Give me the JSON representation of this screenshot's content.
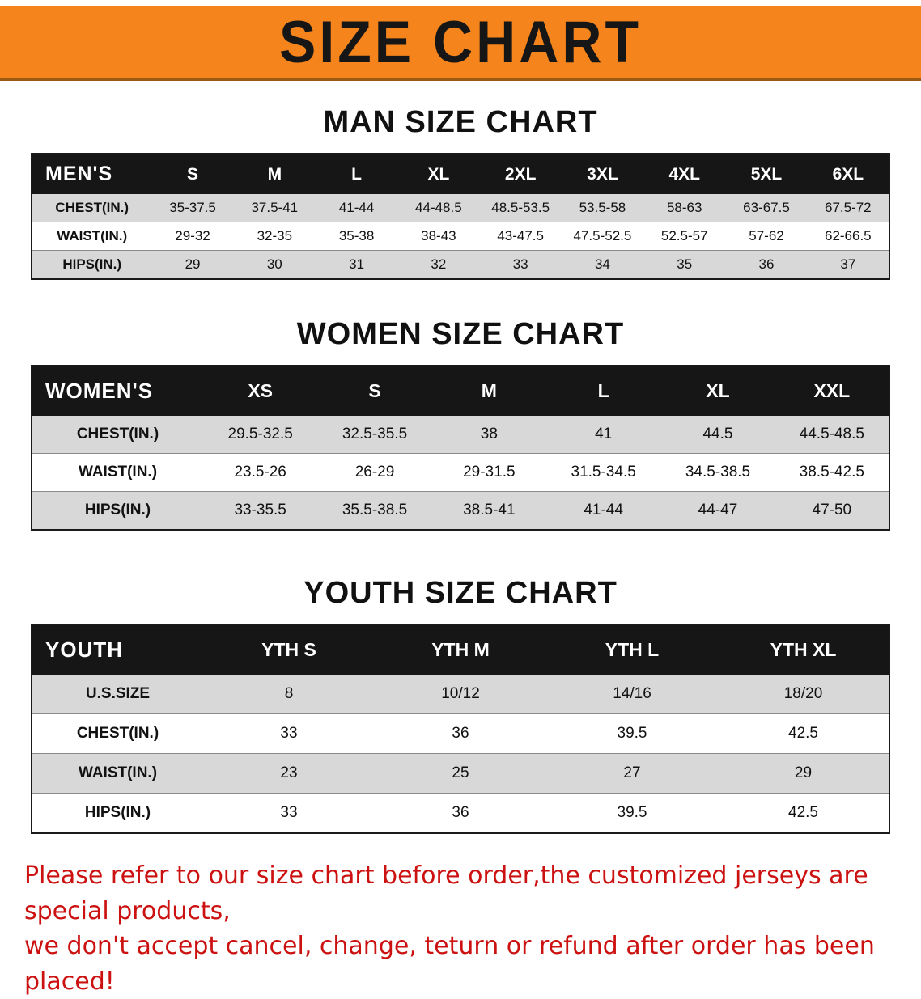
{
  "banner": {
    "title": "SIZE CHART"
  },
  "sections": [
    {
      "id": "men",
      "heading": "MAN SIZE CHART",
      "table": {
        "label": "MEN'S",
        "columns": [
          "S",
          "M",
          "L",
          "XL",
          "2XL",
          "3XL",
          "4XL",
          "5XL",
          "6XL"
        ],
        "rows": [
          {
            "label": "CHEST(IN.)",
            "values": [
              "35-37.5",
              "37.5-41",
              "41-44",
              "44-48.5",
              "48.5-53.5",
              "53.5-58",
              "58-63",
              "63-67.5",
              "67.5-72"
            ]
          },
          {
            "label": "WAIST(IN.)",
            "values": [
              "29-32",
              "32-35",
              "35-38",
              "38-43",
              "43-47.5",
              "47.5-52.5",
              "52.5-57",
              "57-62",
              "62-66.5"
            ]
          },
          {
            "label": "HIPS(IN.)",
            "values": [
              "29",
              "30",
              "31",
              "32",
              "33",
              "34",
              "35",
              "36",
              "37"
            ]
          }
        ]
      }
    },
    {
      "id": "women",
      "heading": "WOMEN SIZE CHART",
      "table": {
        "label": "WOMEN'S",
        "columns": [
          "XS",
          "S",
          "M",
          "L",
          "XL",
          "XXL"
        ],
        "rows": [
          {
            "label": "CHEST(IN.)",
            "values": [
              "29.5-32.5",
              "32.5-35.5",
              "38",
              "41",
              "44.5",
              "44.5-48.5"
            ]
          },
          {
            "label": "WAIST(IN.)",
            "values": [
              "23.5-26",
              "26-29",
              "29-31.5",
              "31.5-34.5",
              "34.5-38.5",
              "38.5-42.5"
            ]
          },
          {
            "label": "HIPS(IN.)",
            "values": [
              "33-35.5",
              "35.5-38.5",
              "38.5-41",
              "41-44",
              "44-47",
              "47-50"
            ]
          }
        ]
      }
    },
    {
      "id": "youth",
      "heading": "YOUTH SIZE CHART",
      "table": {
        "label": "YOUTH",
        "columns": [
          "YTH S",
          "YTH M",
          "YTH L",
          "YTH XL"
        ],
        "rows": [
          {
            "label": "U.S.SIZE",
            "values": [
              "8",
              "10/12",
              "14/16",
              "18/20"
            ]
          },
          {
            "label": "CHEST(IN.)",
            "values": [
              "33",
              "36",
              "39.5",
              "42.5"
            ]
          },
          {
            "label": "WAIST(IN.)",
            "values": [
              "23",
              "25",
              "27",
              "29"
            ]
          },
          {
            "label": "HIPS(IN.)",
            "values": [
              "33",
              "36",
              "39.5",
              "42.5"
            ]
          }
        ]
      }
    }
  ],
  "disclaimer": {
    "line1": "Please refer to our size chart before order,the customized jerseys are special products,",
    "line2": "we don't accept cancel, change, teturn or refund after order has been placed!"
  },
  "colors": {
    "banner_orange": "#f5841c",
    "header_black": "#161616",
    "row_gray": "#d8d8d8",
    "disclaimer_red": "#cc1111"
  }
}
